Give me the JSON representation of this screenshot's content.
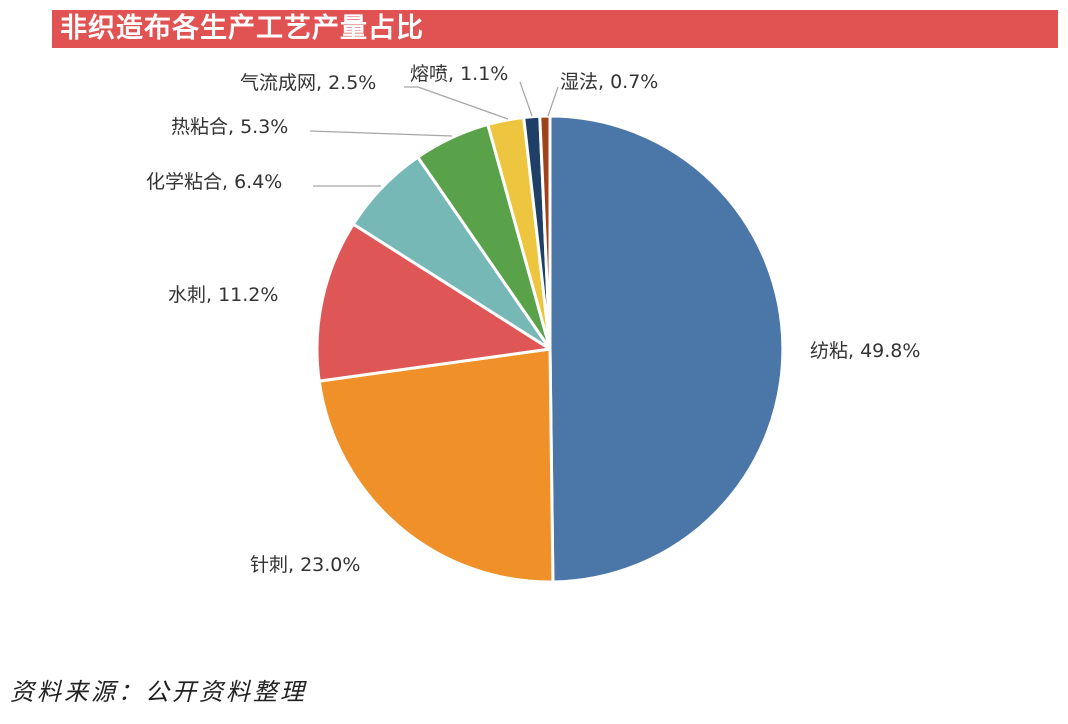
{
  "title": "非织造布各生产工艺产量占比",
  "source": "资料来源：公开资料整理",
  "chart_data": {
    "type": "pie",
    "start_angle_deg": 0,
    "direction": "clockwise",
    "slice_border_color": "#ffffff",
    "slices": [
      {
        "name": "纺粘",
        "value": 49.8,
        "label": "纺粘, 49.8%",
        "color": "#4a76a8"
      },
      {
        "name": "针刺",
        "value": 23.0,
        "label": "针刺, 23.0%",
        "color": "#ef9028"
      },
      {
        "name": "水刺",
        "value": 11.2,
        "label": "水刺, 11.2%",
        "color": "#de5656"
      },
      {
        "name": "化学粘合",
        "value": 6.4,
        "label": "化学粘合, 6.4%",
        "color": "#76b8b6"
      },
      {
        "name": "热粘合",
        "value": 5.3,
        "label": "热粘合, 5.3%",
        "color": "#5aa24a"
      },
      {
        "name": "气流成网",
        "value": 2.5,
        "label": "气流成网, 2.5%",
        "color": "#edc53e"
      },
      {
        "name": "熔喷",
        "value": 1.1,
        "label": "熔喷, 1.1%",
        "color": "#1f3f66"
      },
      {
        "name": "湿法",
        "value": 0.7,
        "label": "湿法, 0.7%",
        "color": "#a0421a"
      }
    ]
  },
  "colors": {
    "title_bar": "#e05352",
    "title_text": "#ffffff",
    "leader_line": "#a6a6a6",
    "label_text": "#333333"
  }
}
